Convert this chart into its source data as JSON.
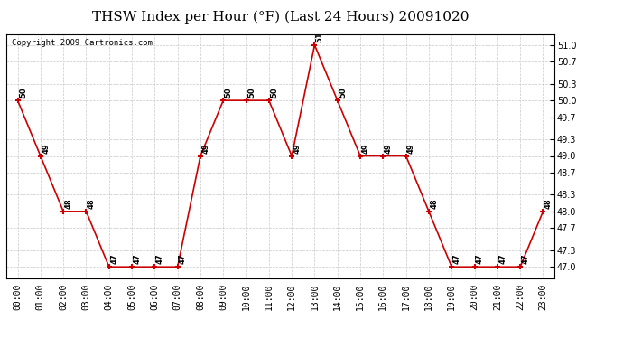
{
  "title": "THSW Index per Hour (°F) (Last 24 Hours) 20091020",
  "copyright": "Copyright 2009 Cartronics.com",
  "hours": [
    "00:00",
    "01:00",
    "02:00",
    "03:00",
    "04:00",
    "05:00",
    "06:00",
    "07:00",
    "08:00",
    "09:00",
    "10:00",
    "11:00",
    "12:00",
    "13:00",
    "14:00",
    "15:00",
    "16:00",
    "17:00",
    "18:00",
    "19:00",
    "20:00",
    "21:00",
    "22:00",
    "23:00"
  ],
  "values": [
    50,
    49,
    48,
    48,
    47,
    47,
    47,
    47,
    49,
    50,
    50,
    50,
    49,
    51,
    50,
    49,
    49,
    49,
    48,
    47,
    47,
    47,
    47,
    48
  ],
  "ylim": [
    46.8,
    51.2
  ],
  "yticks": [
    47.0,
    47.3,
    47.7,
    48.0,
    48.3,
    48.7,
    49.0,
    49.3,
    49.7,
    50.0,
    50.3,
    50.7,
    51.0
  ],
  "line_color": "#cc0000",
  "marker_color": "#cc0000",
  "bg_color": "#ffffff",
  "grid_color": "#c8c8c8",
  "title_fontsize": 11,
  "label_fontsize": 6,
  "tick_fontsize": 7,
  "copyright_fontsize": 6.5
}
